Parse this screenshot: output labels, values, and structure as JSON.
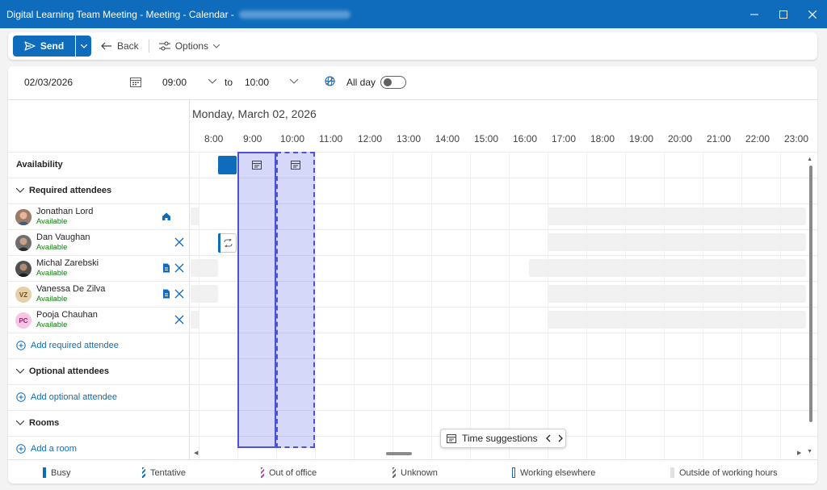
{
  "window": {
    "title": "Digital Learning Team Meeting - Meeting - Calendar - "
  },
  "toolbar": {
    "send_label": "Send",
    "back_label": "Back",
    "options_label": "Options"
  },
  "schedule": {
    "date": "02/03/2026",
    "start_time": "09:00",
    "to_label": "to",
    "end_time": "10:00",
    "all_day_label": "All day",
    "all_day_on": false
  },
  "day_label": "Monday, March 02, 2026",
  "hours": [
    "8:00",
    "9:00",
    "10:00",
    "11:00",
    "12:00",
    "13:00",
    "14:00",
    "15:00",
    "16:00",
    "17:00",
    "18:00",
    "19:00",
    "20:00",
    "21:00",
    "22:00",
    "23:00"
  ],
  "sections": {
    "availability": "Availability",
    "required": "Required attendees",
    "add_required": "Add required attendee",
    "optional": "Optional attendees",
    "add_optional": "Add optional attendee",
    "rooms": "Rooms",
    "add_room": "Add a room"
  },
  "attendees": [
    {
      "name": "Jonathan Lord",
      "status": "Available",
      "initials": "",
      "icon": "home-icon"
    },
    {
      "name": "Dan Vaughan",
      "status": "Available",
      "initials": "",
      "icon": "remove-icon"
    },
    {
      "name": "Michal Zarebski",
      "status": "Available",
      "initials": "",
      "icon": "document-icon"
    },
    {
      "name": "Vanessa De Zilva",
      "status": "Available",
      "initials": "VZ",
      "icon": "document-icon"
    },
    {
      "name": "Pooja Chauhan",
      "status": "Available",
      "initials": "PC",
      "icon": "remove-icon"
    }
  ],
  "time_suggestions_label": "Time suggestions",
  "legend": [
    {
      "label": "Busy",
      "color": "#0f6cbd"
    },
    {
      "label": "Tentative",
      "color": "#0f6cbd"
    },
    {
      "label": "Out of office",
      "color": "#c239b3"
    },
    {
      "label": "Unknown",
      "color": "#616161"
    },
    {
      "label": "Working elsewhere",
      "color": "#0f6cbd"
    },
    {
      "label": "Outside of working hours",
      "color": "#e1e1e1"
    }
  ],
  "colors": {
    "accent": "#0f6cbd",
    "selection": "#4f52d8",
    "available": "#107c10"
  }
}
